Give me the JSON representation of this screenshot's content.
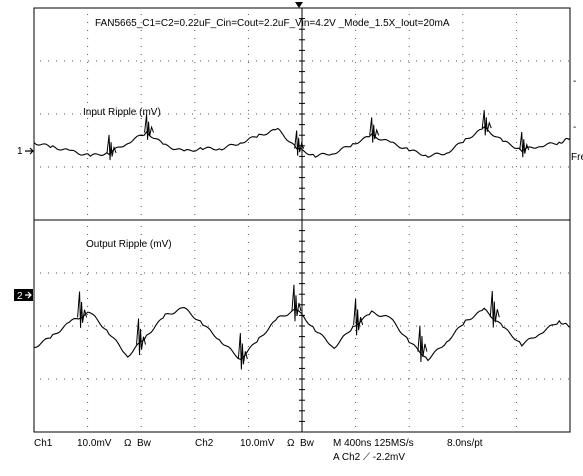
{
  "chart_data": [
    {
      "type": "line",
      "title": "FAN5665_C1=C2=0.22uF_Cin=Cout=2.2uF_Vin=4.2V _Mode_1.5X_Iout=20mA",
      "label": "Input Ripple (mV)",
      "channel_marker": "1",
      "units_per_div": "10.0mV",
      "x_divisions": 10,
      "y_divisions": 8,
      "ylim_div": [
        -4,
        4
      ],
      "x": [
        0.0,
        0.35,
        0.7,
        1.05,
        1.4,
        1.75,
        2.1,
        2.45,
        2.8,
        3.15,
        3.5,
        3.85,
        4.2,
        4.55,
        4.9,
        5.25,
        5.6,
        5.95,
        6.3,
        6.65,
        7.0,
        7.35,
        7.7,
        8.05,
        8.4,
        8.75,
        9.1,
        9.45,
        9.8,
        10.0
      ],
      "y": [
        0.25,
        0.1,
        -0.05,
        -0.2,
        -0.1,
        0.25,
        0.6,
        0.15,
        -0.05,
        0.05,
        0.05,
        0.25,
        0.5,
        0.7,
        0.05,
        -0.2,
        -0.1,
        0.2,
        0.5,
        0.25,
        0.0,
        -0.2,
        -0.1,
        0.35,
        0.75,
        0.3,
        0.0,
        0.15,
        0.25,
        0.4
      ],
      "spikes": [
        1.4,
        2.1,
        4.9,
        6.3,
        8.4,
        9.1
      ]
    },
    {
      "type": "line",
      "label": "Output Ripple (mV)",
      "channel_marker": "2",
      "units_per_div": "10.0mV",
      "x_divisions": 10,
      "y_divisions": 8,
      "ylim_div": [
        -4,
        4
      ],
      "x": [
        0.0,
        0.35,
        0.7,
        1.05,
        1.4,
        1.75,
        2.1,
        2.45,
        2.8,
        3.15,
        3.5,
        3.85,
        4.2,
        4.55,
        4.9,
        5.25,
        5.6,
        5.95,
        6.3,
        6.65,
        7.0,
        7.35,
        7.7,
        8.05,
        8.4,
        8.75,
        9.1,
        9.45,
        9.8,
        10.0
      ],
      "y": [
        -1.8,
        -1.4,
        -0.9,
        -0.6,
        -1.3,
        -2.1,
        -1.4,
        -0.7,
        -0.45,
        -1.0,
        -1.6,
        -2.2,
        -1.5,
        -0.8,
        -0.5,
        -1.2,
        -1.8,
        -1.1,
        -0.6,
        -0.8,
        -1.6,
        -2.2,
        -1.6,
        -0.9,
        -0.5,
        -1.1,
        -1.7,
        -1.3,
        -0.9,
        -1.1
      ],
      "spikes": [
        0.85,
        1.95,
        3.85,
        4.85,
        6.0,
        7.2,
        8.55
      ]
    }
  ],
  "status_bar": {
    "ch1_label": "Ch1",
    "ch1_scale": "10.0mV",
    "ch1_omega": "Ω",
    "ch1_bw": "Bw",
    "ch2_label": "Ch2",
    "ch2_scale": "10.0mV",
    "ch2_omega": "Ω",
    "ch2_bw": "Bw",
    "timebase": "M 400ns 125MS/s",
    "point_spacing": "8.0ns/pt",
    "trigger": "A  Ch2  ⟋  -2.2mV"
  },
  "edge_labels": {
    "right_partial": "Fre"
  }
}
